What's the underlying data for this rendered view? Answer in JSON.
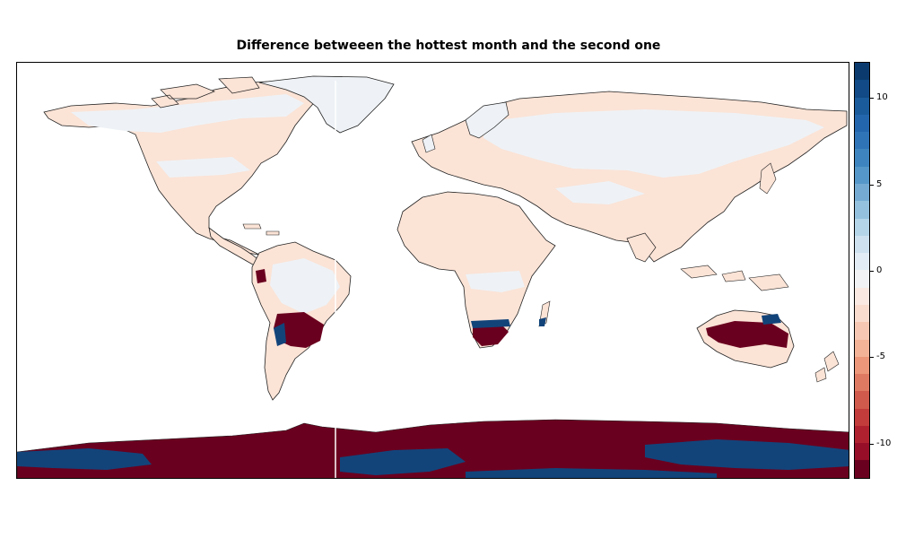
{
  "title": "Difference betweeen the hottest month and the second one",
  "colormap": "RdBu",
  "colorbar": {
    "ticks": [
      {
        "label": "10",
        "value": 10
      },
      {
        "label": "5",
        "value": 5
      },
      {
        "label": "0",
        "value": 0
      },
      {
        "label": "-5",
        "value": -5
      },
      {
        "label": "-10",
        "value": -10
      }
    ],
    "range": [
      -12,
      12
    ],
    "colors_top_to_bottom": [
      "#0b3a6e",
      "#114a86",
      "#1a5b9c",
      "#2466ad",
      "#2f74b7",
      "#3e85bf",
      "#5597c8",
      "#75abd3",
      "#94c2de",
      "#b4d5e8",
      "#cde1ef",
      "#e1ecf4",
      "#f0f2f4",
      "#fae9e2",
      "#f9dcce",
      "#f6c8b3",
      "#f3b397",
      "#ec9779",
      "#df7a62",
      "#d05a4c",
      "#c23c3b",
      "#b02130",
      "#960e28",
      "#6a001f"
    ]
  },
  "legend": {
    "land_near_zero_colors": [
      "#fbe3d6",
      "#eef2f6"
    ],
    "strong_negative_color": "#6a001f",
    "strong_positive_color": "#12447a"
  }
}
